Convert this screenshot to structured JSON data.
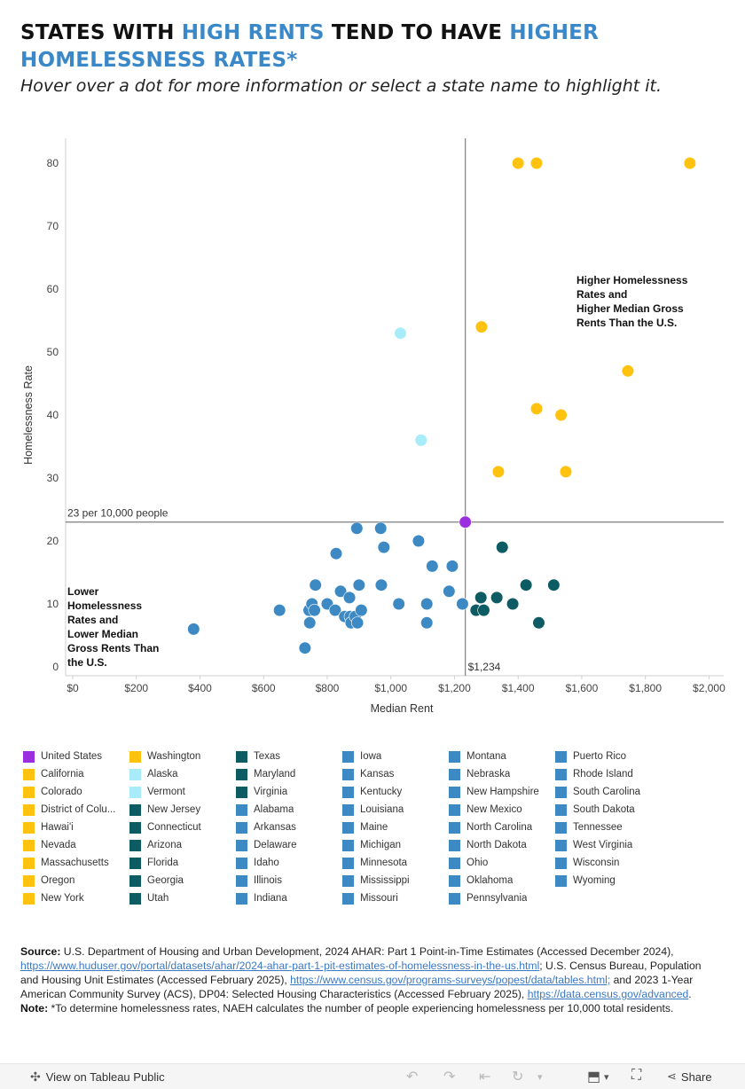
{
  "title": {
    "part1": "STATES WITH ",
    "part2": "HIGH RENTS",
    "part3": " TEND TO HAVE ",
    "part4": "HIGHER",
    "part5": "HOMELESSNESS RATES*"
  },
  "subtitle": "Hover over a dot for more information or select a state name to highlight it.",
  "colors": {
    "us": "#9b2fe0",
    "high": "#ffc20e",
    "ak_vt": "#a8ecf9",
    "high_rent_low_rate": "#0d5b63",
    "low": "#3d89c4"
  },
  "chart_data": {
    "type": "scatter",
    "xlabel": "Median Rent",
    "ylabel": "Homelessness Rate",
    "xlim": [
      0,
      2050
    ],
    "ylim": [
      0,
      85
    ],
    "xticks": [
      "$0",
      "$200",
      "$400",
      "$600",
      "$800",
      "$1,000",
      "$1,200",
      "$1,400",
      "$1,600",
      "$1,800",
      "$2,000"
    ],
    "xtick_values": [
      0,
      200,
      400,
      600,
      800,
      1000,
      1200,
      1400,
      1600,
      1800,
      2000
    ],
    "yticks": [
      "0",
      "10",
      "20",
      "30",
      "40",
      "50",
      "60",
      "70",
      "80"
    ],
    "ytick_values": [
      0,
      10,
      20,
      30,
      40,
      50,
      60,
      70,
      80
    ],
    "reference_lines": {
      "x": 1234,
      "x_label": "$1,234",
      "y": 23,
      "y_label": "23 per 10,000 people"
    },
    "annotations": {
      "top_right": [
        "Higher Homelessness",
        "Rates and",
        "Higher Median Gross",
        "Rents Than the U.S."
      ],
      "bottom_left": [
        "Lower",
        "Homelessness",
        "Rates and",
        "Lower Median",
        "Gross Rents Than",
        "the U.S."
      ]
    },
    "points": [
      {
        "x": 1234,
        "y": 23,
        "g": "us"
      },
      {
        "x": 1400,
        "y": 80,
        "g": "high"
      },
      {
        "x": 1458,
        "y": 80,
        "g": "high"
      },
      {
        "x": 1940,
        "y": 80,
        "g": "high"
      },
      {
        "x": 1285,
        "y": 54,
        "g": "high"
      },
      {
        "x": 1745,
        "y": 47,
        "g": "high"
      },
      {
        "x": 1458,
        "y": 41,
        "g": "high"
      },
      {
        "x": 1535,
        "y": 40,
        "g": "high"
      },
      {
        "x": 1338,
        "y": 31,
        "g": "high"
      },
      {
        "x": 1550,
        "y": 31,
        "g": "high"
      },
      {
        "x": 1030,
        "y": 53,
        "g": "ak_vt"
      },
      {
        "x": 1095,
        "y": 36,
        "g": "ak_vt"
      },
      {
        "x": 1350,
        "y": 19,
        "g": "high_rent_low_rate"
      },
      {
        "x": 1425,
        "y": 13,
        "g": "high_rent_low_rate"
      },
      {
        "x": 1512,
        "y": 13,
        "g": "high_rent_low_rate"
      },
      {
        "x": 1283,
        "y": 11,
        "g": "high_rent_low_rate"
      },
      {
        "x": 1333,
        "y": 11,
        "g": "high_rent_low_rate"
      },
      {
        "x": 1383,
        "y": 10,
        "g": "high_rent_low_rate"
      },
      {
        "x": 1268,
        "y": 9,
        "g": "high_rent_low_rate"
      },
      {
        "x": 1292,
        "y": 9,
        "g": "high_rent_low_rate"
      },
      {
        "x": 1465,
        "y": 7,
        "g": "high_rent_low_rate"
      },
      {
        "x": 380,
        "y": 6,
        "g": "low"
      },
      {
        "x": 650,
        "y": 9,
        "g": "low"
      },
      {
        "x": 730,
        "y": 3,
        "g": "low"
      },
      {
        "x": 745,
        "y": 7,
        "g": "low"
      },
      {
        "x": 743,
        "y": 9,
        "g": "low"
      },
      {
        "x": 752,
        "y": 10,
        "g": "low"
      },
      {
        "x": 760,
        "y": 9,
        "g": "low"
      },
      {
        "x": 763,
        "y": 13,
        "g": "low"
      },
      {
        "x": 800,
        "y": 10,
        "g": "low"
      },
      {
        "x": 825,
        "y": 9,
        "g": "low"
      },
      {
        "x": 828,
        "y": 18,
        "g": "low"
      },
      {
        "x": 842,
        "y": 12,
        "g": "low"
      },
      {
        "x": 855,
        "y": 8,
        "g": "low"
      },
      {
        "x": 870,
        "y": 11,
        "g": "low"
      },
      {
        "x": 872,
        "y": 8,
        "g": "low"
      },
      {
        "x": 875,
        "y": 7,
        "g": "low"
      },
      {
        "x": 888,
        "y": 8,
        "g": "low"
      },
      {
        "x": 895,
        "y": 7,
        "g": "low"
      },
      {
        "x": 893,
        "y": 22,
        "g": "low"
      },
      {
        "x": 900,
        "y": 13,
        "g": "low"
      },
      {
        "x": 907,
        "y": 9,
        "g": "low"
      },
      {
        "x": 968,
        "y": 22,
        "g": "low"
      },
      {
        "x": 970,
        "y": 13,
        "g": "low"
      },
      {
        "x": 978,
        "y": 19,
        "g": "low"
      },
      {
        "x": 1025,
        "y": 10,
        "g": "low"
      },
      {
        "x": 1087,
        "y": 20,
        "g": "low"
      },
      {
        "x": 1113,
        "y": 10,
        "g": "low"
      },
      {
        "x": 1113,
        "y": 7,
        "g": "low"
      },
      {
        "x": 1130,
        "y": 16,
        "g": "low"
      },
      {
        "x": 1183,
        "y": 12,
        "g": "low"
      },
      {
        "x": 1193,
        "y": 16,
        "g": "low"
      },
      {
        "x": 1225,
        "y": 10,
        "g": "low"
      }
    ]
  },
  "legend": [
    [
      {
        "label": "United States",
        "g": "us"
      },
      {
        "label": "California",
        "g": "high"
      },
      {
        "label": "Colorado",
        "g": "high"
      },
      {
        "label": "District of Colu...",
        "g": "high"
      },
      {
        "label": "Hawai'i",
        "g": "high"
      },
      {
        "label": "Nevada",
        "g": "high"
      },
      {
        "label": "Massachusetts",
        "g": "high"
      },
      {
        "label": "Oregon",
        "g": "high"
      },
      {
        "label": "New York",
        "g": "high"
      }
    ],
    [
      {
        "label": "Washington",
        "g": "high"
      },
      {
        "label": "Alaska",
        "g": "ak_vt"
      },
      {
        "label": "Vermont",
        "g": "ak_vt"
      },
      {
        "label": "New Jersey",
        "g": "high_rent_low_rate"
      },
      {
        "label": "Connecticut",
        "g": "high_rent_low_rate"
      },
      {
        "label": "Arizona",
        "g": "high_rent_low_rate"
      },
      {
        "label": "Florida",
        "g": "high_rent_low_rate"
      },
      {
        "label": "Georgia",
        "g": "high_rent_low_rate"
      },
      {
        "label": "Utah",
        "g": "high_rent_low_rate"
      }
    ],
    [
      {
        "label": "Texas",
        "g": "high_rent_low_rate"
      },
      {
        "label": "Maryland",
        "g": "high_rent_low_rate"
      },
      {
        "label": "Virginia",
        "g": "high_rent_low_rate"
      },
      {
        "label": "Alabama",
        "g": "low"
      },
      {
        "label": "Arkansas",
        "g": "low"
      },
      {
        "label": "Delaware",
        "g": "low"
      },
      {
        "label": "Idaho",
        "g": "low"
      },
      {
        "label": "Illinois",
        "g": "low"
      },
      {
        "label": "Indiana",
        "g": "low"
      }
    ],
    [
      {
        "label": "Iowa",
        "g": "low"
      },
      {
        "label": "Kansas",
        "g": "low"
      },
      {
        "label": "Kentucky",
        "g": "low"
      },
      {
        "label": "Louisiana",
        "g": "low"
      },
      {
        "label": "Maine",
        "g": "low"
      },
      {
        "label": "Michigan",
        "g": "low"
      },
      {
        "label": "Minnesota",
        "g": "low"
      },
      {
        "label": "Mississippi",
        "g": "low"
      },
      {
        "label": "Missouri",
        "g": "low"
      }
    ],
    [
      {
        "label": "Montana",
        "g": "low"
      },
      {
        "label": "Nebraska",
        "g": "low"
      },
      {
        "label": "New Hampshire",
        "g": "low"
      },
      {
        "label": "New Mexico",
        "g": "low"
      },
      {
        "label": "North Carolina",
        "g": "low"
      },
      {
        "label": "North Dakota",
        "g": "low"
      },
      {
        "label": "Ohio",
        "g": "low"
      },
      {
        "label": "Oklahoma",
        "g": "low"
      },
      {
        "label": "Pennsylvania",
        "g": "low"
      }
    ],
    [
      {
        "label": "Puerto Rico",
        "g": "low"
      },
      {
        "label": "Rhode Island",
        "g": "low"
      },
      {
        "label": "South Carolina",
        "g": "low"
      },
      {
        "label": "South Dakota",
        "g": "low"
      },
      {
        "label": "Tennessee",
        "g": "low"
      },
      {
        "label": "West Virginia",
        "g": "low"
      },
      {
        "label": "Wisconsin",
        "g": "low"
      },
      {
        "label": "Wyoming",
        "g": "low"
      }
    ]
  ],
  "source": {
    "label": "Source:",
    "text1": " U.S. Department of Housing and Urban Development, 2024 AHAR: Part 1 Point-in-Time Estimates (Accessed December 2024), ",
    "link1": "https://www.huduser.gov/portal/datasets/ahar/2024-ahar-part-1-pit-estimates-of-homelessness-in-the-us.html",
    "text2": "; U.S. Census Bureau, Population and Housing Unit Estimates (Accessed February 2025), ",
    "link2": "https://www.census.gov/programs-surveys/popest/data/tables.html;",
    "text3": " and 2023 1-Year American Community Survey (ACS), DP04: Selected Housing Characteristics (Accessed February 2025), ",
    "link3": "https://data.census.gov/advanced",
    "text4": ".",
    "note_label": "Note:",
    "note_text": " *To determine homelessness rates, NAEH calculates the number of people experiencing homelessness per 10,000 total residents."
  },
  "toolbar": {
    "view_label": "View on Tableau Public",
    "share_label": "Share"
  }
}
